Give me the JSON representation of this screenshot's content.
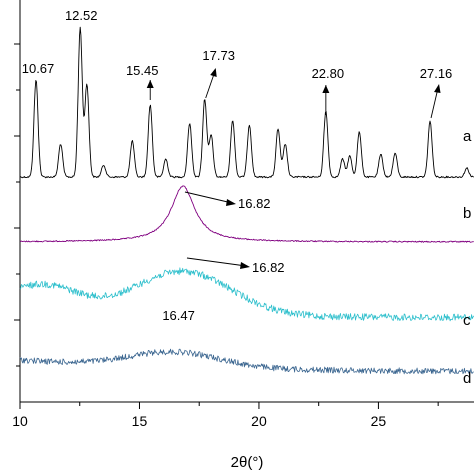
{
  "chart_data": {
    "type": "line",
    "xlabel": "2θ(°)",
    "xlim": [
      10,
      29
    ],
    "x_ticks": [
      10,
      15,
      20,
      25
    ],
    "y_axis_labels_shown": false,
    "grid": false,
    "series": [
      {
        "name": "a",
        "color": "#000000",
        "baseline": 0,
        "peaks": [
          {
            "x": 10.67,
            "h": 0.65
          },
          {
            "x": 11.7,
            "h": 0.22
          },
          {
            "x": 12.52,
            "h": 1.0
          },
          {
            "x": 12.8,
            "h": 0.62
          },
          {
            "x": 13.5,
            "h": 0.08
          },
          {
            "x": 14.7,
            "h": 0.24
          },
          {
            "x": 15.45,
            "h": 0.48
          },
          {
            "x": 16.1,
            "h": 0.12
          },
          {
            "x": 17.1,
            "h": 0.36
          },
          {
            "x": 17.73,
            "h": 0.52
          },
          {
            "x": 18.0,
            "h": 0.28
          },
          {
            "x": 18.9,
            "h": 0.38
          },
          {
            "x": 19.6,
            "h": 0.35
          },
          {
            "x": 20.8,
            "h": 0.32
          },
          {
            "x": 21.1,
            "h": 0.22
          },
          {
            "x": 22.8,
            "h": 0.44
          },
          {
            "x": 23.5,
            "h": 0.12
          },
          {
            "x": 23.8,
            "h": 0.14
          },
          {
            "x": 24.2,
            "h": 0.3
          },
          {
            "x": 25.1,
            "h": 0.15
          },
          {
            "x": 25.7,
            "h": 0.16
          },
          {
            "x": 27.16,
            "h": 0.37
          },
          {
            "x": 28.7,
            "h": 0.06
          }
        ]
      },
      {
        "name": "b",
        "color": "#800080",
        "peaks": [
          {
            "x": 16.82,
            "h": 1.0
          }
        ]
      },
      {
        "name": "c",
        "color": "#2dbfcc",
        "peaks": [
          {
            "x": 16.82,
            "h": 1.0
          }
        ]
      },
      {
        "name": "d",
        "color": "#3b6690",
        "peaks": [
          {
            "x": 16.47,
            "h": 1.0
          }
        ]
      }
    ],
    "annotations": [
      {
        "text": "10.67",
        "x": 10.67,
        "series": "a"
      },
      {
        "text": "12.52",
        "x": 12.52,
        "series": "a"
      },
      {
        "text": "15.45",
        "x": 15.45,
        "series": "a",
        "arrow": true
      },
      {
        "text": "17.73",
        "x": 17.73,
        "series": "a",
        "arrow": true
      },
      {
        "text": "22.80",
        "x": 22.8,
        "series": "a",
        "arrow": true
      },
      {
        "text": "27.16",
        "x": 27.16,
        "series": "a",
        "arrow": true
      },
      {
        "text": "16.82",
        "x": 16.82,
        "series": "b",
        "arrow": true
      },
      {
        "text": "16.82",
        "x": 16.82,
        "series": "c",
        "arrow": true
      },
      {
        "text": "16.47",
        "x": 16.47,
        "series": "d"
      }
    ]
  }
}
